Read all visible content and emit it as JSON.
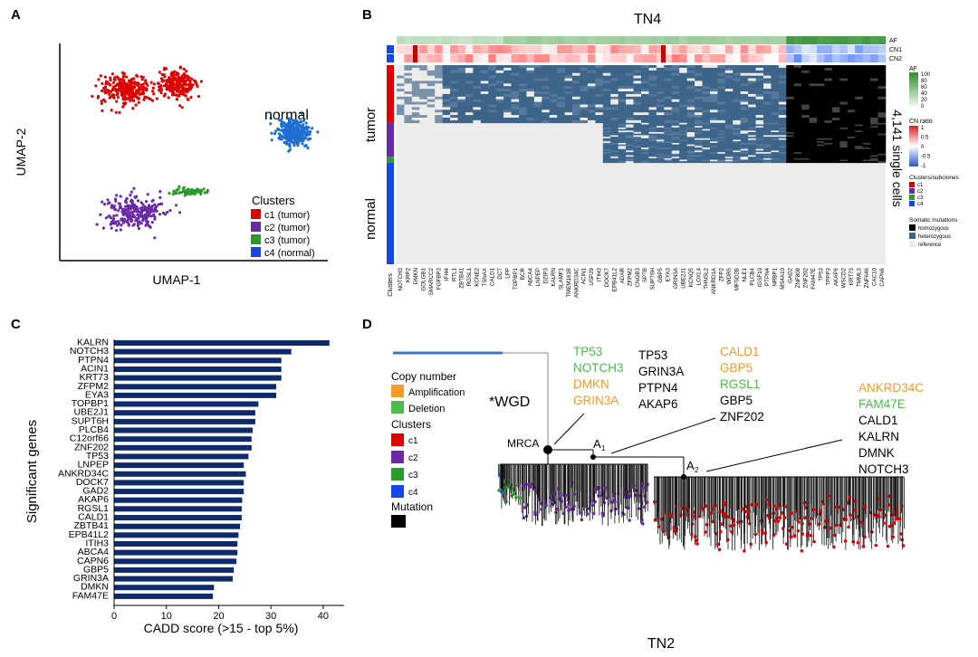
{
  "panels": {
    "a": {
      "label": "A"
    },
    "b": {
      "label": "B"
    },
    "c": {
      "label": "C"
    },
    "d": {
      "label": "D"
    }
  },
  "colors": {
    "c1": "#dd0000",
    "c2": "#6a2aa6",
    "c3": "#2a9a2a",
    "c4": "#1447e6",
    "normal": "#1f6fd1",
    "navy": "#0d2a6b",
    "blue_mut": "#3d6489",
    "ref": "#ececec",
    "amp": "#f39a2a",
    "del": "#4cbb4c"
  },
  "chart_data": [
    {
      "id": "A",
      "type": "scatter",
      "title": "",
      "xlabel": "UMAP-1",
      "ylabel": "UMAP-2",
      "annotation": "normal",
      "legend_title": "Clusters",
      "legend_position": "bottom-right",
      "legend": [
        {
          "key": "c1",
          "label": "c1 (tumor)"
        },
        {
          "key": "c2",
          "label": "c2 (tumor)"
        },
        {
          "key": "c3",
          "label": "c3 (tumor)"
        },
        {
          "key": "c4",
          "label": "c4 (normal)"
        }
      ],
      "clusters": [
        {
          "key": "c1",
          "center": [
            -4.2,
            5.4
          ],
          "spread": [
            2.1,
            1.3
          ]
        },
        {
          "key": "c1b",
          "center": [
            -0.8,
            5.8
          ],
          "spread": [
            1.5,
            1.2
          ]
        },
        {
          "key": "c2",
          "center": [
            -3.8,
            -4.2
          ],
          "spread": [
            2.3,
            1.4
          ]
        },
        {
          "key": "c3",
          "center": [
            0.2,
            -2.6
          ],
          "spread": [
            1.2,
            0.35
          ]
        },
        {
          "key": "normal",
          "center": [
            7.6,
            2.0
          ],
          "spread": [
            1.3,
            1.1
          ]
        }
      ],
      "xlim": [
        -9,
        10
      ],
      "ylim": [
        -8,
        9
      ]
    },
    {
      "id": "B",
      "type": "heatmap",
      "title": "TN4",
      "top_tracks": [
        "AF",
        "CN1",
        "CN2"
      ],
      "row_clusters": [
        {
          "key": "c1",
          "fraction": 0.29
        },
        {
          "key": "c2",
          "fraction": 0.17
        },
        {
          "key": "c3",
          "fraction": 0.03
        },
        {
          "key": "c4",
          "fraction": 0.51
        }
      ],
      "row_groups": [
        "tumor",
        "normal"
      ],
      "right_label": "4,141 single cells",
      "x_title": "Clusters",
      "genes": [
        "NOTCH3",
        "KRP2",
        "DMKN",
        "GOLGB1",
        "SMARCC2",
        "FGFBP3",
        "IFI44",
        "RTL1",
        "ZBTB41",
        "RGSL1",
        "KCNE2",
        "TSNAX",
        "CALD1",
        "DCT",
        "LPP",
        "TOPBP1",
        "BCR",
        "ABCA4",
        "LNPEP",
        "DZIP3",
        "KALRN",
        "SLAMF1",
        "TMEM161B",
        "ANKRD34C",
        "ACIN1",
        "USP29",
        "ITIH3",
        "DOCK7",
        "EPB41L2",
        "ADAR",
        "ZFPM2",
        "CNGB3",
        "SPTB",
        "SUPT6H",
        "GBP5",
        "EYA3",
        "GRIN3A",
        "UBE2J1",
        "KCNQ5",
        "LOXL4",
        "THNSL2",
        "ANKRD1A",
        "ZFP2",
        "WDR5",
        "MFSD2B",
        "NLE1",
        "PLCB4",
        "IGSF10",
        "PTPN4",
        "NRBP1",
        "MS4A10",
        "GAD2",
        "ZNF808",
        "ZNF202",
        "FAM47E",
        "TP53",
        "TPPP3",
        "AKAP6",
        "WSCD2",
        "KRT73",
        "TMML3",
        "ZNF646",
        "CAC10",
        "CAPN6"
      ],
      "legend": {
        "af_title": "AF",
        "af_ticks": [
          "100",
          "80",
          "60",
          "40",
          "20",
          "0"
        ],
        "cn_title": "CN ratio",
        "cn_ticks": [
          "1",
          "0.5",
          "0",
          "-0.5",
          "-1"
        ],
        "clusters_title": "Clusters/subclones",
        "clusters": [
          "c1",
          "c2",
          "c3",
          "c4"
        ],
        "mut_title": "Somatic mutations",
        "mut_items": [
          "homozygous",
          "heterozygous",
          "reference"
        ]
      }
    },
    {
      "id": "C",
      "type": "bar",
      "orientation": "horizontal",
      "title": "",
      "xlabel": "CADD score  (>15 - top 5%)",
      "ylabel": "Significant genes",
      "xlim": [
        0,
        44
      ],
      "xticks": [
        0,
        10,
        20,
        30,
        40
      ],
      "categories": [
        "KALRN",
        "NOTCH3",
        "PTPN4",
        "ACIN1",
        "KRT73",
        "ZFPM2",
        "EYA3",
        "TOPBP1",
        "UBE2J1",
        "SUPT6H",
        "PLCB4",
        "C12orf66",
        "ZNF202",
        "TP53",
        "LNPEP",
        "ANKRD34C",
        "DOCK7",
        "GAD2",
        "AKAP6",
        "RGSL1",
        "CALD1",
        "ZBTB41",
        "EPB41L2",
        "ITIH3",
        "ABCA4",
        "CAPN6",
        "GBP5",
        "GRIN3A",
        "DMKN",
        "FAM47E"
      ],
      "values": [
        41.2,
        33.9,
        32.0,
        32.0,
        32.0,
        31.0,
        31.0,
        27.6,
        27.0,
        27.0,
        26.5,
        26.3,
        26.3,
        25.7,
        24.8,
        25.2,
        24.8,
        24.8,
        24.5,
        24.4,
        24.4,
        24.1,
        23.8,
        23.6,
        23.6,
        23.4,
        22.9,
        22.7,
        19.1,
        18.9
      ]
    },
    {
      "id": "D",
      "type": "tree",
      "title": "TN2",
      "wgd": "*WGD",
      "nodes": [
        "MRCA",
        "A",
        "A"
      ],
      "node_subs": [
        "1",
        "2"
      ],
      "legend": {
        "cn_title": "Copy number",
        "cn_items": [
          "Amplification",
          "Deletion"
        ],
        "clusters_title": "Clusters",
        "clusters": [
          "c1",
          "c2",
          "c3",
          "c4"
        ],
        "mutation_title": "Mutation"
      },
      "mrca_genes": [
        {
          "name": "TP53",
          "type": "del"
        },
        {
          "name": "NOTCH3",
          "type": "del"
        },
        {
          "name": "DMKN",
          "type": "amp"
        },
        {
          "name": "GRIN3A",
          "type": "amp"
        }
      ],
      "mrca_mutations": [
        "TP53",
        "GRIN3A",
        "PTPN4",
        "AKAP6"
      ],
      "a1_genes": [
        {
          "name": "CALD1",
          "type": "amp"
        },
        {
          "name": "GBP5",
          "type": "amp"
        },
        {
          "name": "RGSL1",
          "type": "del"
        },
        {
          "name": "GBP5",
          "type": "mut"
        },
        {
          "name": "ZNF202",
          "type": "mut"
        }
      ],
      "a2_genes": [
        {
          "name": "ANKRD34C",
          "type": "amp"
        },
        {
          "name": "FAM47E",
          "type": "del"
        },
        {
          "name": "CALD1",
          "type": "mut"
        },
        {
          "name": "KALRN",
          "type": "mut"
        },
        {
          "name": "DMNK",
          "type": "mut"
        },
        {
          "name": "NOTCH3",
          "type": "mut"
        }
      ]
    }
  ]
}
